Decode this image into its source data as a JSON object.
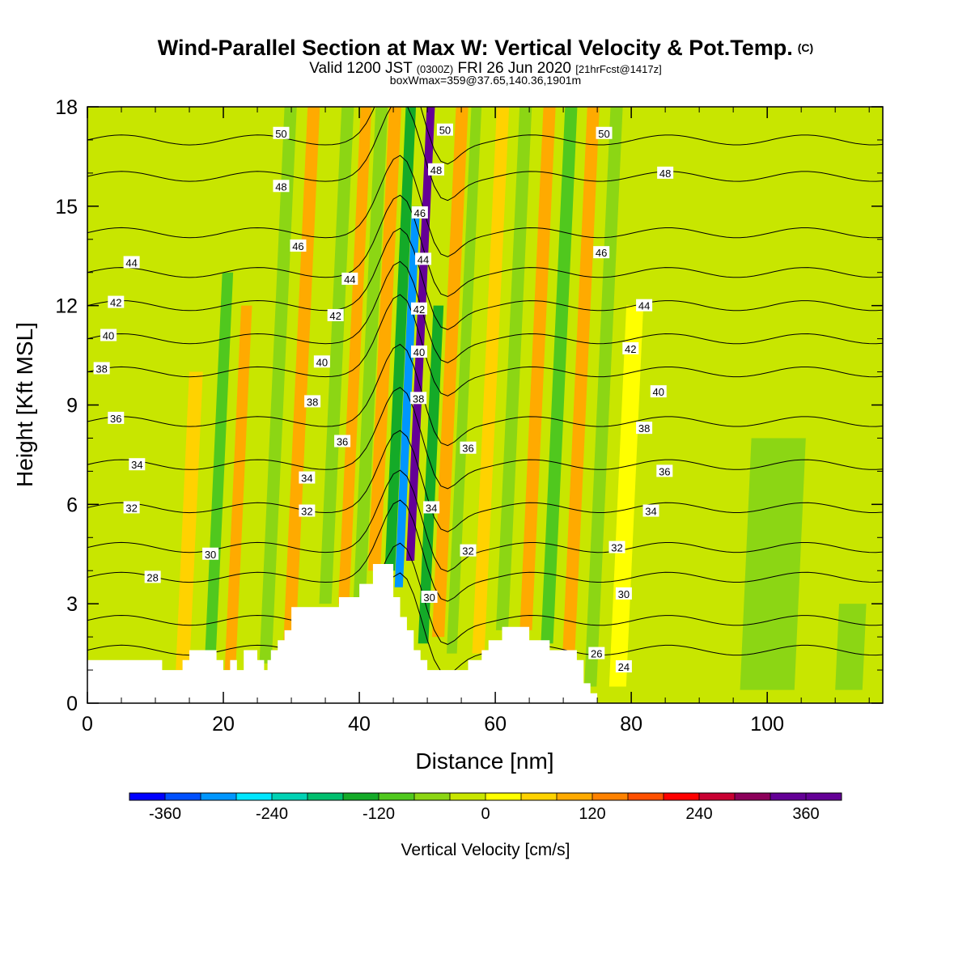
{
  "title": {
    "main": "Wind-Parallel Section at Max W: Vertical Velocity & Pot.Temp.",
    "copyright": "(C)",
    "valid": "Valid 1200 JST",
    "valid_z": "(0300Z)",
    "valid_date": "FRI 26 Jun 2020",
    "fcst": "[21hrFcst@1417z]",
    "boxwmax": "boxWmax=359@37.65,140.36,1901m"
  },
  "chart_data": {
    "type": "heatmap",
    "xlabel": "Distance [nm]",
    "ylabel": "Height [Kft MSL]",
    "xlim": [
      0,
      117
    ],
    "ylim": [
      0,
      18
    ],
    "xticks": [
      "0",
      "20",
      "40",
      "60",
      "80",
      "100"
    ],
    "yticks": [
      "0",
      "3",
      "6",
      "9",
      "12",
      "15",
      "18"
    ],
    "colorbar": {
      "label": "Vertical Velocity [cm/s]",
      "range": [
        -400,
        400
      ],
      "step": 40,
      "tick_labels": [
        "-360",
        "-240",
        "-120",
        "0",
        "120",
        "240",
        "360"
      ],
      "colors": [
        "#0000ff",
        "#0050ff",
        "#0096ff",
        "#00e6ff",
        "#00d2b4",
        "#00be6e",
        "#14aa28",
        "#50c81e",
        "#8cd614",
        "#c8e600",
        "#ffff00",
        "#ffd200",
        "#ffaa00",
        "#ff8200",
        "#ff5000",
        "#ff0000",
        "#c80032",
        "#8c005a",
        "#640096"
      ]
    },
    "wind_cells": [
      {
        "x": 47.5,
        "w": 1.2,
        "z0": 4.3,
        "z1": 18,
        "v": 330
      },
      {
        "x": 45.8,
        "w": 1.2,
        "z0": 3.5,
        "z1": 15,
        "v": -320
      },
      {
        "x": 44.5,
        "w": 1.5,
        "z0": 4.0,
        "z1": 18,
        "v": -130
      },
      {
        "x": 49.4,
        "w": 1.5,
        "z0": 1.8,
        "z1": 12,
        "v": -150
      },
      {
        "x": 42.2,
        "w": 1.8,
        "z0": 4.0,
        "z1": 18,
        "v": 110
      },
      {
        "x": 51.6,
        "w": 1.8,
        "z0": 2.0,
        "z1": 18,
        "v": 110
      },
      {
        "x": 53.6,
        "w": 1.5,
        "z0": 1.5,
        "z1": 18,
        "v": -70
      },
      {
        "x": 40.0,
        "w": 1.8,
        "z0": 3.0,
        "z1": 18,
        "v": -70
      },
      {
        "x": 37.7,
        "w": 1.6,
        "z0": 3.0,
        "z1": 18,
        "v": 90
      },
      {
        "x": 35.0,
        "w": 1.8,
        "z0": 3.0,
        "z1": 18,
        "v": -60
      },
      {
        "x": 29.6,
        "w": 1.8,
        "z0": 1.2,
        "z1": 18,
        "v": 90
      },
      {
        "x": 26.2,
        "w": 1.8,
        "z0": 1.2,
        "z1": 18,
        "v": -70
      },
      {
        "x": 21.0,
        "w": 1.6,
        "z0": 1.0,
        "z1": 12,
        "v": 110
      },
      {
        "x": 18.0,
        "w": 1.6,
        "z0": 1.0,
        "z1": 13,
        "v": -100
      },
      {
        "x": 14.0,
        "w": 2.0,
        "z0": 1.0,
        "z1": 10,
        "v": 60
      },
      {
        "x": 5.0,
        "w": 2.2,
        "z0": 1.2,
        "z1": 18,
        "v": -40
      },
      {
        "x": 57.5,
        "w": 1.8,
        "z0": 1.5,
        "z1": 18,
        "v": 70
      },
      {
        "x": 61.0,
        "w": 1.8,
        "z0": 2.2,
        "z1": 18,
        "v": -80
      },
      {
        "x": 64.5,
        "w": 1.8,
        "z0": 2.2,
        "z1": 18,
        "v": 80
      },
      {
        "x": 67.6,
        "w": 1.8,
        "z0": 1.8,
        "z1": 18,
        "v": -90
      },
      {
        "x": 70.8,
        "w": 1.8,
        "z0": 1.5,
        "z1": 18,
        "v": 90
      },
      {
        "x": 74.0,
        "w": 1.8,
        "z0": 0.5,
        "z1": 18,
        "v": -60
      },
      {
        "x": 78.0,
        "w": 2.5,
        "z0": 0.5,
        "z1": 12,
        "v": 30
      },
      {
        "x": 87.0,
        "w": 3.0,
        "z0": 0.4,
        "z1": 18,
        "v": -30
      },
      {
        "x": 100.0,
        "w": 8.0,
        "z0": 0.4,
        "z1": 8,
        "v": -45
      },
      {
        "x": 112.0,
        "w": 4.0,
        "z0": 0.4,
        "z1": 3,
        "v": -50
      },
      {
        "x": 102.0,
        "w": 6.0,
        "z0": 10,
        "z1": 18,
        "v": -35
      }
    ],
    "terrain": [
      [
        0,
        1.3
      ],
      [
        11,
        1.3
      ],
      [
        11,
        1.0
      ],
      [
        14,
        1.0
      ],
      [
        14,
        1.3
      ],
      [
        15,
        1.3
      ],
      [
        15,
        1.6
      ],
      [
        19,
        1.6
      ],
      [
        19,
        1.3
      ],
      [
        20,
        1.3
      ],
      [
        20,
        1.0
      ],
      [
        21,
        1.0
      ],
      [
        21,
        1.3
      ],
      [
        22,
        1.3
      ],
      [
        22,
        1.0
      ],
      [
        23,
        1.0
      ],
      [
        23,
        1.6
      ],
      [
        25,
        1.6
      ],
      [
        25,
        1.3
      ],
      [
        26,
        1.3
      ],
      [
        26,
        1.0
      ],
      [
        26.5,
        1.0
      ],
      [
        26.5,
        1.3
      ],
      [
        27,
        1.3
      ],
      [
        27,
        1.6
      ],
      [
        28,
        1.6
      ],
      [
        28,
        1.9
      ],
      [
        29,
        1.9
      ],
      [
        29,
        2.2
      ],
      [
        30,
        2.2
      ],
      [
        30,
        2.9
      ],
      [
        37,
        2.9
      ],
      [
        37,
        3.2
      ],
      [
        40,
        3.2
      ],
      [
        40,
        3.6
      ],
      [
        42,
        3.6
      ],
      [
        42,
        4.2
      ],
      [
        45,
        4.2
      ],
      [
        45,
        3.2
      ],
      [
        46,
        3.2
      ],
      [
        46,
        2.6
      ],
      [
        47,
        2.6
      ],
      [
        47,
        2.2
      ],
      [
        48,
        2.2
      ],
      [
        48,
        1.6
      ],
      [
        49,
        1.6
      ],
      [
        49,
        1.3
      ],
      [
        50,
        1.3
      ],
      [
        50,
        1.0
      ],
      [
        56,
        1.0
      ],
      [
        56,
        1.3
      ],
      [
        58,
        1.3
      ],
      [
        58,
        1.6
      ],
      [
        59,
        1.6
      ],
      [
        59,
        1.9
      ],
      [
        61,
        1.9
      ],
      [
        61,
        2.3
      ],
      [
        65,
        2.3
      ],
      [
        65,
        1.9
      ],
      [
        68,
        1.9
      ],
      [
        68,
        1.6
      ],
      [
        72,
        1.6
      ],
      [
        72,
        1.3
      ],
      [
        73,
        1.3
      ],
      [
        73,
        0.6
      ],
      [
        74,
        0.6
      ],
      [
        74,
        0.3
      ],
      [
        75,
        0.3
      ],
      [
        75,
        0
      ],
      [
        0,
        0
      ]
    ],
    "theta_contours": [
      {
        "value": 50,
        "z": 17.0
      },
      {
        "value": 48,
        "z": 15.9
      },
      {
        "value": 46,
        "z": 14.2
      },
      {
        "value": 44,
        "z": 13.0
      },
      {
        "value": 42,
        "z": 12.0
      },
      {
        "value": 40,
        "z": 11.0
      },
      {
        "value": 38,
        "z": 10.0
      },
      {
        "value": 36,
        "z": 8.5
      },
      {
        "value": 34,
        "z": 7.2
      },
      {
        "value": 32,
        "z": 5.9
      },
      {
        "value": 30,
        "z": 4.7
      },
      {
        "value": 28,
        "z": 3.8
      },
      {
        "value": 26,
        "z": 2.5
      },
      {
        "value": 24,
        "z": 1.6
      }
    ],
    "contour_labels": [
      {
        "text": "50",
        "x": 28.5,
        "z": 17.2
      },
      {
        "text": "48",
        "x": 28.5,
        "z": 15.6
      },
      {
        "text": "46",
        "x": 31.0,
        "z": 13.8
      },
      {
        "text": "44",
        "x": 6.5,
        "z": 13.3
      },
      {
        "text": "42",
        "x": 4.2,
        "z": 12.1
      },
      {
        "text": "40",
        "x": 3.1,
        "z": 11.1
      },
      {
        "text": "38",
        "x": 2.1,
        "z": 10.1
      },
      {
        "text": "36",
        "x": 4.2,
        "z": 8.6
      },
      {
        "text": "34",
        "x": 7.3,
        "z": 7.2
      },
      {
        "text": "32",
        "x": 6.5,
        "z": 5.9
      },
      {
        "text": "30",
        "x": 18.1,
        "z": 4.5
      },
      {
        "text": "28",
        "x": 9.6,
        "z": 3.8
      },
      {
        "text": "44",
        "x": 38.6,
        "z": 12.8
      },
      {
        "text": "42",
        "x": 36.5,
        "z": 11.7
      },
      {
        "text": "40",
        "x": 34.5,
        "z": 10.3
      },
      {
        "text": "38",
        "x": 33.1,
        "z": 9.1
      },
      {
        "text": "36",
        "x": 37.5,
        "z": 7.9
      },
      {
        "text": "34",
        "x": 32.3,
        "z": 6.8
      },
      {
        "text": "32",
        "x": 32.3,
        "z": 5.8
      },
      {
        "text": "50",
        "x": 52.6,
        "z": 17.3
      },
      {
        "text": "48",
        "x": 51.3,
        "z": 16.1
      },
      {
        "text": "46",
        "x": 48.9,
        "z": 14.8
      },
      {
        "text": "44",
        "x": 49.4,
        "z": 13.4
      },
      {
        "text": "42",
        "x": 48.8,
        "z": 11.9
      },
      {
        "text": "40",
        "x": 48.8,
        "z": 10.6
      },
      {
        "text": "38",
        "x": 48.7,
        "z": 9.2
      },
      {
        "text": "36",
        "x": 56.0,
        "z": 7.7
      },
      {
        "text": "34",
        "x": 50.6,
        "z": 5.9
      },
      {
        "text": "32",
        "x": 56.0,
        "z": 4.6
      },
      {
        "text": "30",
        "x": 50.3,
        "z": 3.2
      },
      {
        "text": "50",
        "x": 76.0,
        "z": 17.2
      },
      {
        "text": "48",
        "x": 85.0,
        "z": 16.0
      },
      {
        "text": "46",
        "x": 75.6,
        "z": 13.6
      },
      {
        "text": "44",
        "x": 81.9,
        "z": 12.0
      },
      {
        "text": "42",
        "x": 79.9,
        "z": 10.7
      },
      {
        "text": "40",
        "x": 84.0,
        "z": 9.4
      },
      {
        "text": "38",
        "x": 81.9,
        "z": 8.3
      },
      {
        "text": "36",
        "x": 84.9,
        "z": 7.0
      },
      {
        "text": "34",
        "x": 82.9,
        "z": 5.8
      },
      {
        "text": "32",
        "x": 77.9,
        "z": 4.7
      },
      {
        "text": "30",
        "x": 78.9,
        "z": 3.3
      },
      {
        "text": "26",
        "x": 74.9,
        "z": 1.5
      },
      {
        "text": "24",
        "x": 78.9,
        "z": 1.1
      }
    ]
  }
}
